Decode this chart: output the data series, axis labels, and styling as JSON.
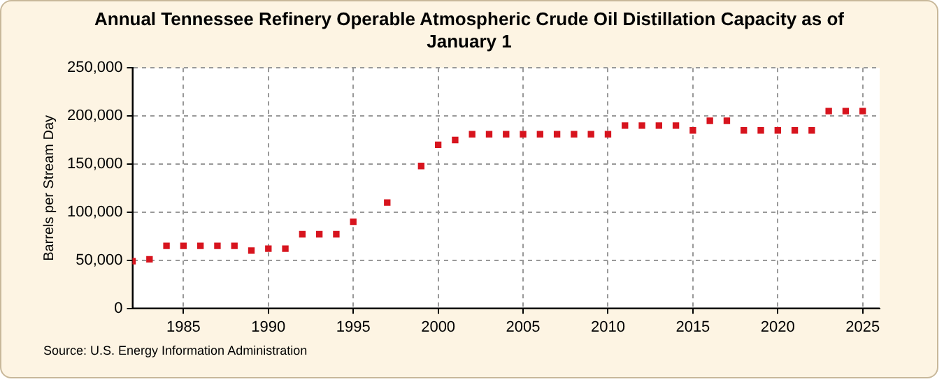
{
  "chart_data": {
    "type": "scatter",
    "title": "Annual Tennessee Refinery Operable Atmospheric Crude Oil Distillation Capacity as of January 1",
    "ylabel": "Barrels per Stream Day",
    "annotations": [
      "Source: U.S. Energy Information Administration"
    ],
    "x": [
      1982,
      1983,
      1984,
      1985,
      1986,
      1987,
      1988,
      1989,
      1990,
      1991,
      1992,
      1993,
      1994,
      1995,
      1997,
      1999,
      2000,
      2001,
      2002,
      2003,
      2004,
      2005,
      2006,
      2007,
      2008,
      2009,
      2010,
      2011,
      2012,
      2013,
      2014,
      2015,
      2016,
      2017,
      2018,
      2019,
      2020,
      2021,
      2022,
      2023,
      2024,
      2025
    ],
    "series": [
      {
        "color": "#d7141e",
        "values": [
          49000,
          51000,
          65000,
          65000,
          65000,
          65000,
          65000,
          60000,
          62000,
          62000,
          77000,
          77000,
          77000,
          90000,
          110000,
          148000,
          170000,
          175000,
          181000,
          181000,
          181000,
          181000,
          181000,
          181000,
          181000,
          181000,
          181000,
          190000,
          190000,
          190000,
          190000,
          185000,
          195000,
          195000,
          185000,
          185000,
          185000,
          185000,
          185000,
          205000,
          205000,
          205000
        ]
      }
    ],
    "xlim": [
      1982,
      2026
    ],
    "xticks": [
      1985,
      1990,
      1995,
      2000,
      2005,
      2010,
      2015,
      2020,
      2025
    ],
    "ylim": [
      0,
      250000
    ],
    "yticks": [
      0,
      {
        "value": 50000,
        "label": "50,000"
      },
      {
        "value": 100000,
        "label": "100,000"
      },
      {
        "value": 150000,
        "label": "150,000"
      },
      {
        "value": 200000,
        "label": "200,000"
      },
      {
        "value": 250000,
        "label": "250,000"
      }
    ],
    "grid": true,
    "legend": false,
    "marker": "square"
  }
}
